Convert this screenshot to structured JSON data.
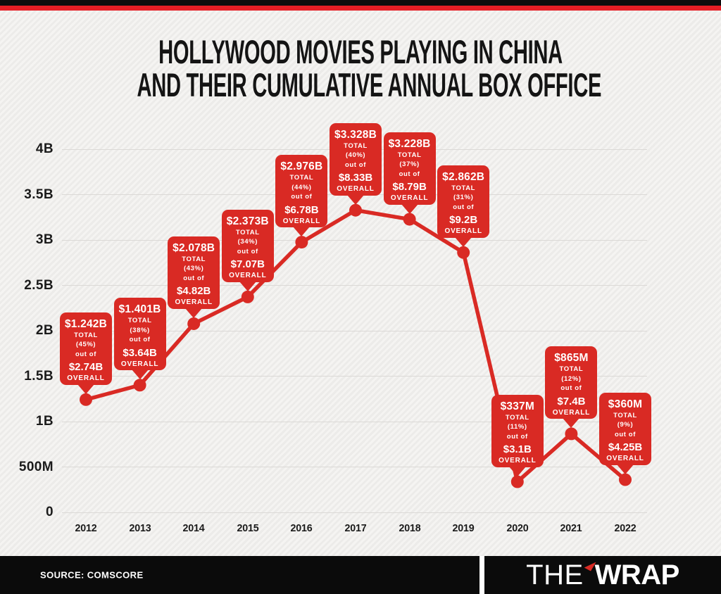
{
  "header": {
    "title_line1": "HOLLYWOOD MOVIES PLAYING IN CHINA",
    "title_line2": "AND THEIR CUMULATIVE ANNUAL BOX OFFICE"
  },
  "colors": {
    "red": "#d92a24",
    "accent_stripe": "#e51e25",
    "background": "#f1efee",
    "grid": "#dbd9d6"
  },
  "chart_data": {
    "type": "line",
    "title": "Hollywood movies playing in China and their cumulative annual box office",
    "categories": [
      "2012",
      "2013",
      "2014",
      "2015",
      "2016",
      "2017",
      "2018",
      "2019",
      "2020",
      "2021",
      "2022"
    ],
    "series": [
      {
        "name": "Hollywood cumulative annual box office in China (USD, billions)",
        "values": [
          1.242,
          1.401,
          2.078,
          2.373,
          2.976,
          3.328,
          3.228,
          2.862,
          0.337,
          0.865,
          0.36
        ]
      }
    ],
    "ylim": [
      0,
      4
    ],
    "grid": true,
    "legend_position": "none",
    "y_ticks": [
      {
        "label": "4B",
        "value": 4
      },
      {
        "label": "3.5B",
        "value": 3.5
      },
      {
        "label": "3B",
        "value": 3
      },
      {
        "label": "2.5B",
        "value": 2.5
      },
      {
        "label": "2B",
        "value": 2
      },
      {
        "label": "1.5B",
        "value": 1.5
      },
      {
        "label": "1B",
        "value": 1
      },
      {
        "label": "500M",
        "value": 0.5
      },
      {
        "label": "0",
        "value": 0
      }
    ],
    "annotations": [
      {
        "year": "2012",
        "total": "$1.242B",
        "total_label": "TOTAL",
        "percent": "(45%)",
        "connector": "out of",
        "overall": "$2.74B",
        "overall_label": "OVERALL"
      },
      {
        "year": "2013",
        "total": "$1.401B",
        "total_label": "TOTAL",
        "percent": "(38%)",
        "connector": "out of",
        "overall": "$3.64B",
        "overall_label": "OVERALL"
      },
      {
        "year": "2014",
        "total": "$2.078B",
        "total_label": "TOTAL",
        "percent": "(43%)",
        "connector": "out of",
        "overall": "$4.82B",
        "overall_label": "OVERALL"
      },
      {
        "year": "2015",
        "total": "$2.373B",
        "total_label": "TOTAL",
        "percent": "(34%)",
        "connector": "out of",
        "overall": "$7.07B",
        "overall_label": "OVERALL"
      },
      {
        "year": "2016",
        "total": "$2.976B",
        "total_label": "TOTAL",
        "percent": "(44%)",
        "connector": "out of",
        "overall": "$6.78B",
        "overall_label": "OVERALL"
      },
      {
        "year": "2017",
        "total": "$3.328B",
        "total_label": "TOTAL",
        "percent": "(40%)",
        "connector": "out of",
        "overall": "$8.33B",
        "overall_label": "OVERALL"
      },
      {
        "year": "2018",
        "total": "$3.228B",
        "total_label": "TOTAL",
        "percent": "(37%)",
        "connector": "out of",
        "overall": "$8.79B",
        "overall_label": "OVERALL"
      },
      {
        "year": "2019",
        "total": "$2.862B",
        "total_label": "TOTAL",
        "percent": "(31%)",
        "connector": "out of",
        "overall": "$9.2B",
        "overall_label": "OVERALL"
      },
      {
        "year": "2020",
        "total": "$337M",
        "total_label": "TOTAL",
        "percent": "(11%)",
        "connector": "out of",
        "overall": "$3.1B",
        "overall_label": "OVERALL"
      },
      {
        "year": "2021",
        "total": "$865M",
        "total_label": "TOTAL",
        "percent": "(12%)",
        "connector": "out of",
        "overall": "$7.4B",
        "overall_label": "OVERALL"
      },
      {
        "year": "2022",
        "total": "$360M",
        "total_label": "TOTAL",
        "percent": "(9%)",
        "connector": "out of",
        "overall": "$4.25B",
        "overall_label": "OVERALL"
      }
    ]
  },
  "footer": {
    "source": "SOURCE: COMSCORE",
    "logo": {
      "the": "THE",
      "wrap": "WRAP"
    }
  }
}
